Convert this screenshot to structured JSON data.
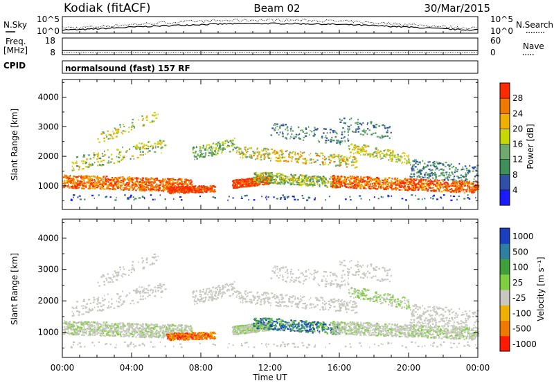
{
  "header": {
    "station": "Kodiak (fitACF)",
    "beam": "Beam 02",
    "date": "30/Mar/2015"
  },
  "summary_panels": {
    "nsky_label": "N.Sky",
    "nsearch_label": "N.Search",
    "noise_left_ticks": [
      "10^5",
      "10^0"
    ],
    "noise_right_ticks": [
      "10^5",
      "10^0"
    ],
    "freq_label": "Freq.",
    "freq_unit": "[MHz]",
    "freq_ticks": [
      "18",
      "8"
    ],
    "nave_label": "Nave",
    "nave_ticks": [
      "60",
      "0"
    ],
    "cpid_label": "CPID",
    "cpid_text": "normalsound (fast) 157 RF"
  },
  "chart_data": [
    {
      "type": "heatmap",
      "name": "power",
      "ylabel": "Slant Range [km]",
      "yticks": [
        1000,
        2000,
        3000,
        4000
      ],
      "ylim": [
        200,
        4600
      ],
      "xlim_hours": [
        0,
        24
      ],
      "colorbar_label": "Power [dB]",
      "colorbar_ticks": [
        "4",
        "8",
        "12",
        "16",
        "20",
        "24",
        "28"
      ],
      "colorscale": [
        "#1a1aff",
        "#2f4fa8",
        "#3f8f5a",
        "#6ea96e",
        "#c7d800",
        "#f0b000",
        "#f07a00",
        "#ff2a00"
      ]
    },
    {
      "type": "heatmap",
      "name": "velocity",
      "ylabel": "Slant Range [km]",
      "yticks": [
        1000,
        2000,
        3000,
        4000
      ],
      "ylim": [
        200,
        4600
      ],
      "xlim_hours": [
        0,
        24
      ],
      "colorbar_label": "Velocity [m s⁻¹]",
      "colorbar_ticks": [
        "1000",
        "500",
        "100",
        "25",
        "-25",
        "-100",
        "-500",
        "-1000"
      ],
      "colorscale": [
        "#1a3fc0",
        "#2f7fa0",
        "#3f9f3a",
        "#7fd040",
        "#c8c8c0",
        "#f0b000",
        "#f07a00",
        "#ff1a00"
      ],
      "xlabel": "Time UT",
      "xticks": [
        "00:00",
        "04:00",
        "08:00",
        "12:00",
        "16:00",
        "20:00",
        "00:00"
      ]
    }
  ]
}
